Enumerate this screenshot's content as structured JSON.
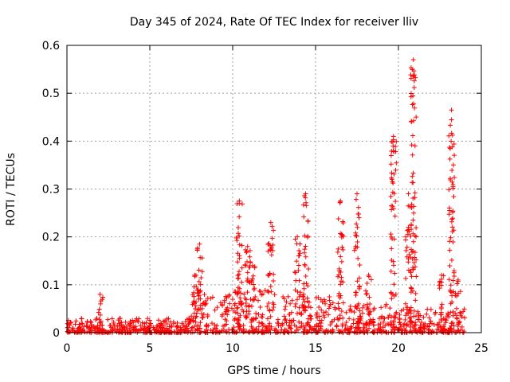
{
  "chart_data": {
    "type": "scatter",
    "title": "Day 345 of 2024, Rate Of TEC Index for receiver lliv",
    "xlabel": "GPS time / hours",
    "ylabel": "ROTI / TECUs",
    "xlim": [
      0,
      25
    ],
    "ylim": [
      0,
      0.6
    ],
    "xticks": [
      0,
      5,
      10,
      15,
      20,
      25
    ],
    "yticks": [
      0,
      0.1,
      0.2,
      0.3,
      0.4,
      0.5,
      0.6
    ],
    "grid": true,
    "marker": "+",
    "series": [
      {
        "name": "ROTI",
        "color": "#ff0000",
        "baseline_bands": [
          {
            "x_start": 0.0,
            "x_end": 6.0,
            "y_min": 0.0,
            "y_max": 0.03
          },
          {
            "x_start": 6.0,
            "x_end": 7.5,
            "y_min": 0.0,
            "y_max": 0.03
          },
          {
            "x_start": 7.5,
            "x_end": 10.0,
            "y_min": 0.0,
            "y_max": 0.08
          },
          {
            "x_start": 10.0,
            "x_end": 14.0,
            "y_min": 0.0,
            "y_max": 0.09
          },
          {
            "x_start": 14.0,
            "x_end": 16.5,
            "y_min": 0.0,
            "y_max": 0.08
          },
          {
            "x_start": 16.5,
            "x_end": 19.5,
            "y_min": 0.0,
            "y_max": 0.06
          },
          {
            "x_start": 19.5,
            "x_end": 24.0,
            "y_min": 0.0,
            "y_max": 0.05
          }
        ],
        "spikes": [
          {
            "x": 2.0,
            "y_max": 0.08
          },
          {
            "x": 7.7,
            "y_max": 0.12
          },
          {
            "x": 8.0,
            "y_max": 0.185
          },
          {
            "x": 10.4,
            "y_max": 0.275
          },
          {
            "x": 10.9,
            "y_max": 0.18
          },
          {
            "x": 11.2,
            "y_max": 0.14
          },
          {
            "x": 12.3,
            "y_max": 0.23
          },
          {
            "x": 13.9,
            "y_max": 0.2
          },
          {
            "x": 14.4,
            "y_max": 0.29
          },
          {
            "x": 16.5,
            "y_max": 0.275
          },
          {
            "x": 17.5,
            "y_max": 0.29
          },
          {
            "x": 18.2,
            "y_max": 0.12
          },
          {
            "x": 19.7,
            "y_max": 0.41
          },
          {
            "x": 20.6,
            "y_max": 0.29
          },
          {
            "x": 20.9,
            "y_max": 0.57
          },
          {
            "x": 22.6,
            "y_max": 0.12
          },
          {
            "x": 23.2,
            "y_max": 0.465
          },
          {
            "x": 23.6,
            "y_max": 0.11
          }
        ]
      }
    ]
  }
}
